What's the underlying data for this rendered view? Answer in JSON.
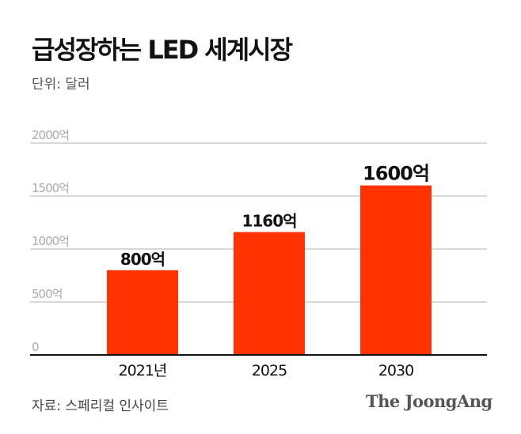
{
  "title": "급성장하는 LED 세계시장",
  "unit_label": "단위: 달러",
  "source": "자료: 스페리컬 인사이트",
  "logo": "The JoongAng",
  "colors": {
    "bar": "#ff3300",
    "grid": "#cccccc",
    "axis": "#111111",
    "tick_label": "#aaaaaa"
  },
  "chart_data": {
    "type": "bar",
    "categories": [
      "2021년",
      "2025",
      "2030"
    ],
    "values": [
      800,
      1160,
      1600
    ],
    "data_labels": [
      "800억",
      "1160억",
      "1600억"
    ],
    "yticks": [
      0,
      500,
      1000,
      1500,
      2000
    ],
    "ytick_labels": [
      "0",
      "500억",
      "1000억",
      "1500억",
      "2000억"
    ],
    "ylim": [
      0,
      2000
    ],
    "grid": true,
    "title": "급성장하는 LED 세계시장",
    "ylabel": "단위: 달러"
  }
}
